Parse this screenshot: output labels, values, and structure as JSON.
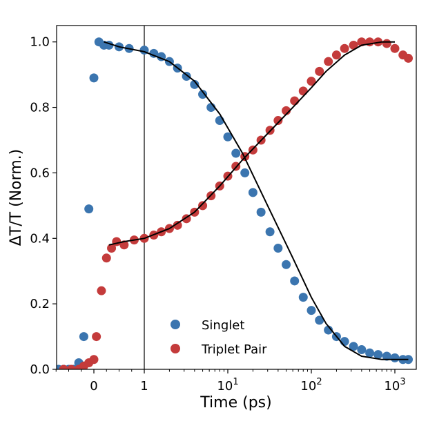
{
  "chart_data": {
    "type": "scatter",
    "title": "",
    "xlabel": "Time (ps)",
    "ylabel": "ΔT/T (Norm.)",
    "x_scale": "symlog (linear from -1 to 1 ps, log10 above)",
    "xlim": [
      -1,
      1500
    ],
    "ylim": [
      0.0,
      1.05
    ],
    "x_ticks": [
      {
        "value": 0,
        "label": "0"
      },
      {
        "value": 1,
        "label": "1"
      },
      {
        "value": 10,
        "label": "10",
        "exp": "1"
      },
      {
        "value": 100,
        "label": "10",
        "exp": "2"
      },
      {
        "value": 1000,
        "label": "10",
        "exp": "3"
      }
    ],
    "y_ticks": [
      "0.0",
      "0.2",
      "0.4",
      "0.6",
      "0.8",
      "1.0"
    ],
    "y_tick_values": [
      0.0,
      0.2,
      0.4,
      0.6,
      0.8,
      1.0
    ],
    "grid": false,
    "legend_position": "lower center",
    "reference_line_x": 1,
    "series": [
      {
        "name": "Singlet",
        "color": "#3b75af",
        "marker": "circle",
        "x": [
          -0.7,
          -0.6,
          -0.5,
          -0.4,
          -0.3,
          -0.2,
          -0.1,
          0.0,
          0.1,
          0.2,
          0.3,
          0.5,
          0.7,
          1.0,
          1.3,
          1.6,
          2.0,
          2.5,
          3.2,
          4.0,
          5.0,
          6.3,
          8.0,
          10,
          12.5,
          16,
          20,
          25,
          32,
          40,
          50,
          63,
          80,
          100,
          125,
          160,
          200,
          250,
          320,
          400,
          500,
          630,
          800,
          1000,
          1250,
          1450
        ],
        "y": [
          0.0,
          0.0,
          0.0,
          0.0,
          0.02,
          0.1,
          0.49,
          0.89,
          1.0,
          0.99,
          0.99,
          0.985,
          0.98,
          0.975,
          0.965,
          0.955,
          0.94,
          0.92,
          0.895,
          0.87,
          0.84,
          0.8,
          0.76,
          0.71,
          0.66,
          0.6,
          0.54,
          0.48,
          0.42,
          0.37,
          0.32,
          0.27,
          0.22,
          0.18,
          0.15,
          0.12,
          0.1,
          0.085,
          0.07,
          0.06,
          0.05,
          0.045,
          0.04,
          0.035,
          0.03,
          0.03
        ]
      },
      {
        "name": "Triplet Pair",
        "color": "#c43b3b",
        "marker": "circle",
        "x": [
          -1.0,
          -0.6,
          -0.45,
          -0.3,
          -0.2,
          -0.1,
          0.0,
          0.05,
          0.15,
          0.25,
          0.35,
          0.45,
          0.6,
          0.8,
          1.0,
          1.3,
          1.6,
          2.0,
          2.5,
          3.2,
          4.0,
          5.0,
          6.3,
          8.0,
          10,
          12.5,
          16,
          20,
          25,
          32,
          40,
          50,
          63,
          80,
          100,
          125,
          160,
          200,
          250,
          320,
          400,
          500,
          630,
          800,
          1000,
          1250,
          1450
        ],
        "y": [
          0.0,
          0.0,
          0.0,
          0.0,
          0.01,
          0.02,
          0.03,
          0.1,
          0.24,
          0.34,
          0.37,
          0.39,
          0.38,
          0.395,
          0.4,
          0.41,
          0.42,
          0.43,
          0.44,
          0.46,
          0.48,
          0.5,
          0.53,
          0.56,
          0.59,
          0.62,
          0.65,
          0.67,
          0.7,
          0.73,
          0.76,
          0.79,
          0.82,
          0.85,
          0.88,
          0.91,
          0.94,
          0.96,
          0.98,
          0.99,
          1.0,
          1.0,
          1.0,
          0.995,
          0.98,
          0.96,
          0.95
        ]
      }
    ],
    "fits": [
      {
        "series": "Singlet",
        "color": "#000000",
        "x": [
          0.2,
          0.5,
          1,
          2,
          4,
          8,
          15,
          30,
          60,
          100,
          150,
          250,
          400,
          700,
          1000,
          1450
        ],
        "y": [
          1.0,
          0.985,
          0.97,
          0.94,
          0.88,
          0.78,
          0.66,
          0.5,
          0.34,
          0.22,
          0.14,
          0.07,
          0.04,
          0.03,
          0.03,
          0.03
        ]
      },
      {
        "series": "Triplet Pair",
        "color": "#000000",
        "x": [
          0.3,
          0.6,
          1,
          2,
          4,
          8,
          15,
          30,
          60,
          100,
          150,
          250,
          400,
          700,
          1000
        ],
        "y": [
          0.38,
          0.39,
          0.4,
          0.43,
          0.48,
          0.56,
          0.64,
          0.72,
          0.8,
          0.86,
          0.91,
          0.96,
          0.99,
          1.0,
          1.0
        ]
      }
    ]
  }
}
